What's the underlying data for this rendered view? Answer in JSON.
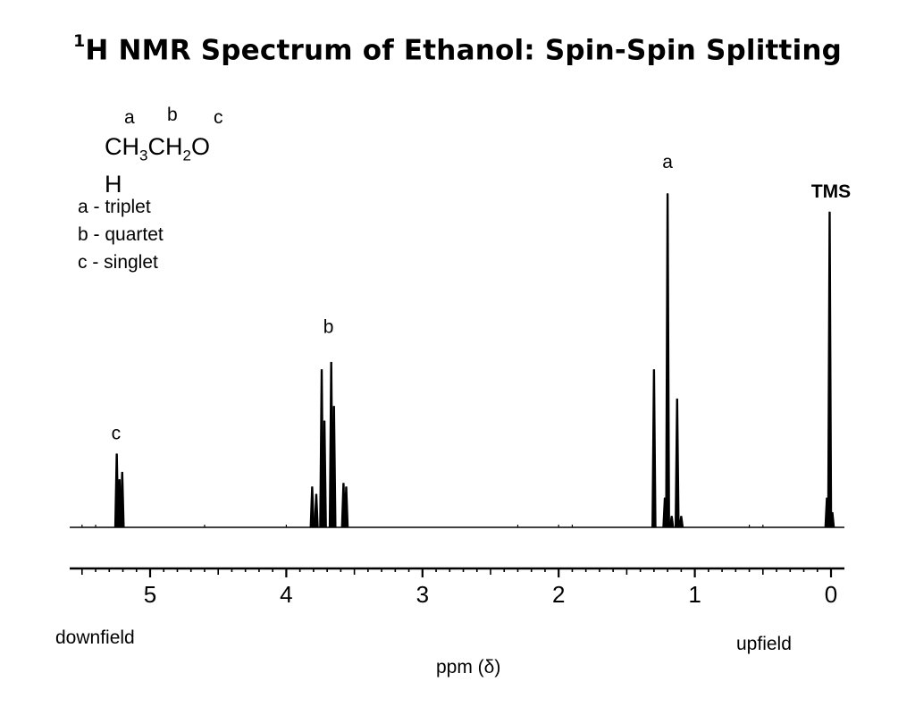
{
  "title_sup": "1",
  "title_main": "H NMR Spectrum of Ethanol: Spin-Spin Splitting",
  "molecule": {
    "labels": [
      "a",
      "b",
      "c"
    ],
    "formula_parts": [
      "CH",
      "3",
      "CH",
      "2",
      "O"
    ],
    "formula_line2": "H"
  },
  "multiplicities": [
    "a - triplet",
    "b - quartet",
    "c - singlet"
  ],
  "downfield_label": "downfield",
  "upfield_label": "upfield",
  "xlabel": "ppm (δ)",
  "chart_data": {
    "type": "line",
    "title": "1H NMR Spectrum of Ethanol: Spin-Spin Splitting",
    "xlabel": "ppm (δ)",
    "ylabel": "",
    "x_reversed": true,
    "xlim": [
      5.6,
      -0.1
    ],
    "x_ticks": [
      5,
      4,
      3,
      2,
      1,
      0
    ],
    "ylim": [
      0,
      1.0
    ],
    "grid": false,
    "peak_groups": [
      {
        "label": "c",
        "multiplicity": "singlet",
        "center_ppm": 5.23
      },
      {
        "label": "b",
        "multiplicity": "quartet",
        "center_ppm": 3.69
      },
      {
        "label": "a",
        "multiplicity": "triplet",
        "center_ppm": 1.2
      },
      {
        "label": "TMS",
        "multiplicity": "singlet",
        "center_ppm": 0.0
      }
    ],
    "peaks": [
      {
        "x": 5.245,
        "y": 0.2
      },
      {
        "x": 5.225,
        "y": 0.13
      },
      {
        "x": 5.205,
        "y": 0.15
      },
      {
        "x": 3.81,
        "y": 0.11
      },
      {
        "x": 3.78,
        "y": 0.09
      },
      {
        "x": 3.74,
        "y": 0.43
      },
      {
        "x": 3.72,
        "y": 0.29
      },
      {
        "x": 3.67,
        "y": 0.45
      },
      {
        "x": 3.65,
        "y": 0.33
      },
      {
        "x": 3.58,
        "y": 0.12
      },
      {
        "x": 3.56,
        "y": 0.11
      },
      {
        "x": 1.3,
        "y": 0.43
      },
      {
        "x": 1.3,
        "y": 0.04
      },
      {
        "x": 1.2,
        "y": 0.91
      },
      {
        "x": 1.22,
        "y": 0.08
      },
      {
        "x": 1.17,
        "y": 0.03
      },
      {
        "x": 1.13,
        "y": 0.35
      },
      {
        "x": 1.1,
        "y": 0.03
      },
      {
        "x": 0.01,
        "y": 0.86
      },
      {
        "x": 0.03,
        "y": 0.08
      },
      {
        "x": -0.01,
        "y": 0.04
      }
    ],
    "annotations": [
      {
        "text": "c",
        "x": 5.25,
        "y": 0.26
      },
      {
        "text": "b",
        "x": 3.69,
        "y": 0.55
      },
      {
        "text": "a",
        "x": 1.2,
        "y": 1.0
      },
      {
        "text": "TMS",
        "x": 0.0,
        "y": 0.92
      }
    ]
  }
}
